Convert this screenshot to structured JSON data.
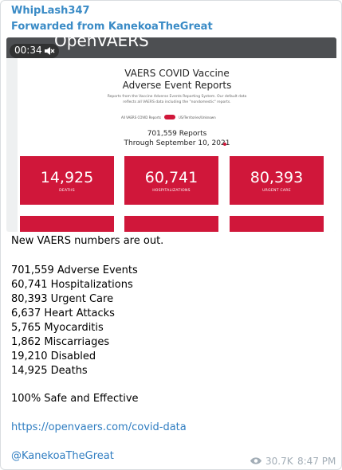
{
  "header": {
    "sender": "WhipLash347",
    "forwarded": "Forwarded from KanekoaTheGreat"
  },
  "video": {
    "site": "OpenVAERS",
    "duration": "00:34",
    "title_line1": "VAERS COVID Vaccine",
    "title_line2": "Adverse Event Reports",
    "description_line1": "Reports from the Vaccine Adverse Events Reporting System. Our default data",
    "description_line2": "reflects all VAERS data including the \"nondomestic\" reports.",
    "toggle_left": "All VAERS COVID Reports",
    "toggle_right": "US/Territories/Unknown",
    "reports": "701,559 Reports",
    "through": "Through September 10, 2021",
    "stats": [
      {
        "value": "14,925",
        "label": "DEATHS"
      },
      {
        "value": "60,741",
        "label": "HOSPITALIZATIONS"
      },
      {
        "value": "80,393",
        "label": "URGENT CARE"
      }
    ]
  },
  "message": {
    "intro": "New VAERS numbers are out.",
    "items": [
      "701,559 Adverse Events",
      "60,741 Hospitalizations",
      "80,393 Urgent Care",
      "6,637 Heart Attacks",
      "5,765 Myocarditis",
      "1,862 Miscarriages",
      "19,210 Disabled",
      "14,925 Deaths"
    ],
    "tagline": "100% Safe and Effective",
    "link": "https://openvaers.com/covid-data",
    "mention": "@KanekoaTheGreat"
  },
  "footer": {
    "views": "30.7K",
    "time": "8:47 PM"
  }
}
